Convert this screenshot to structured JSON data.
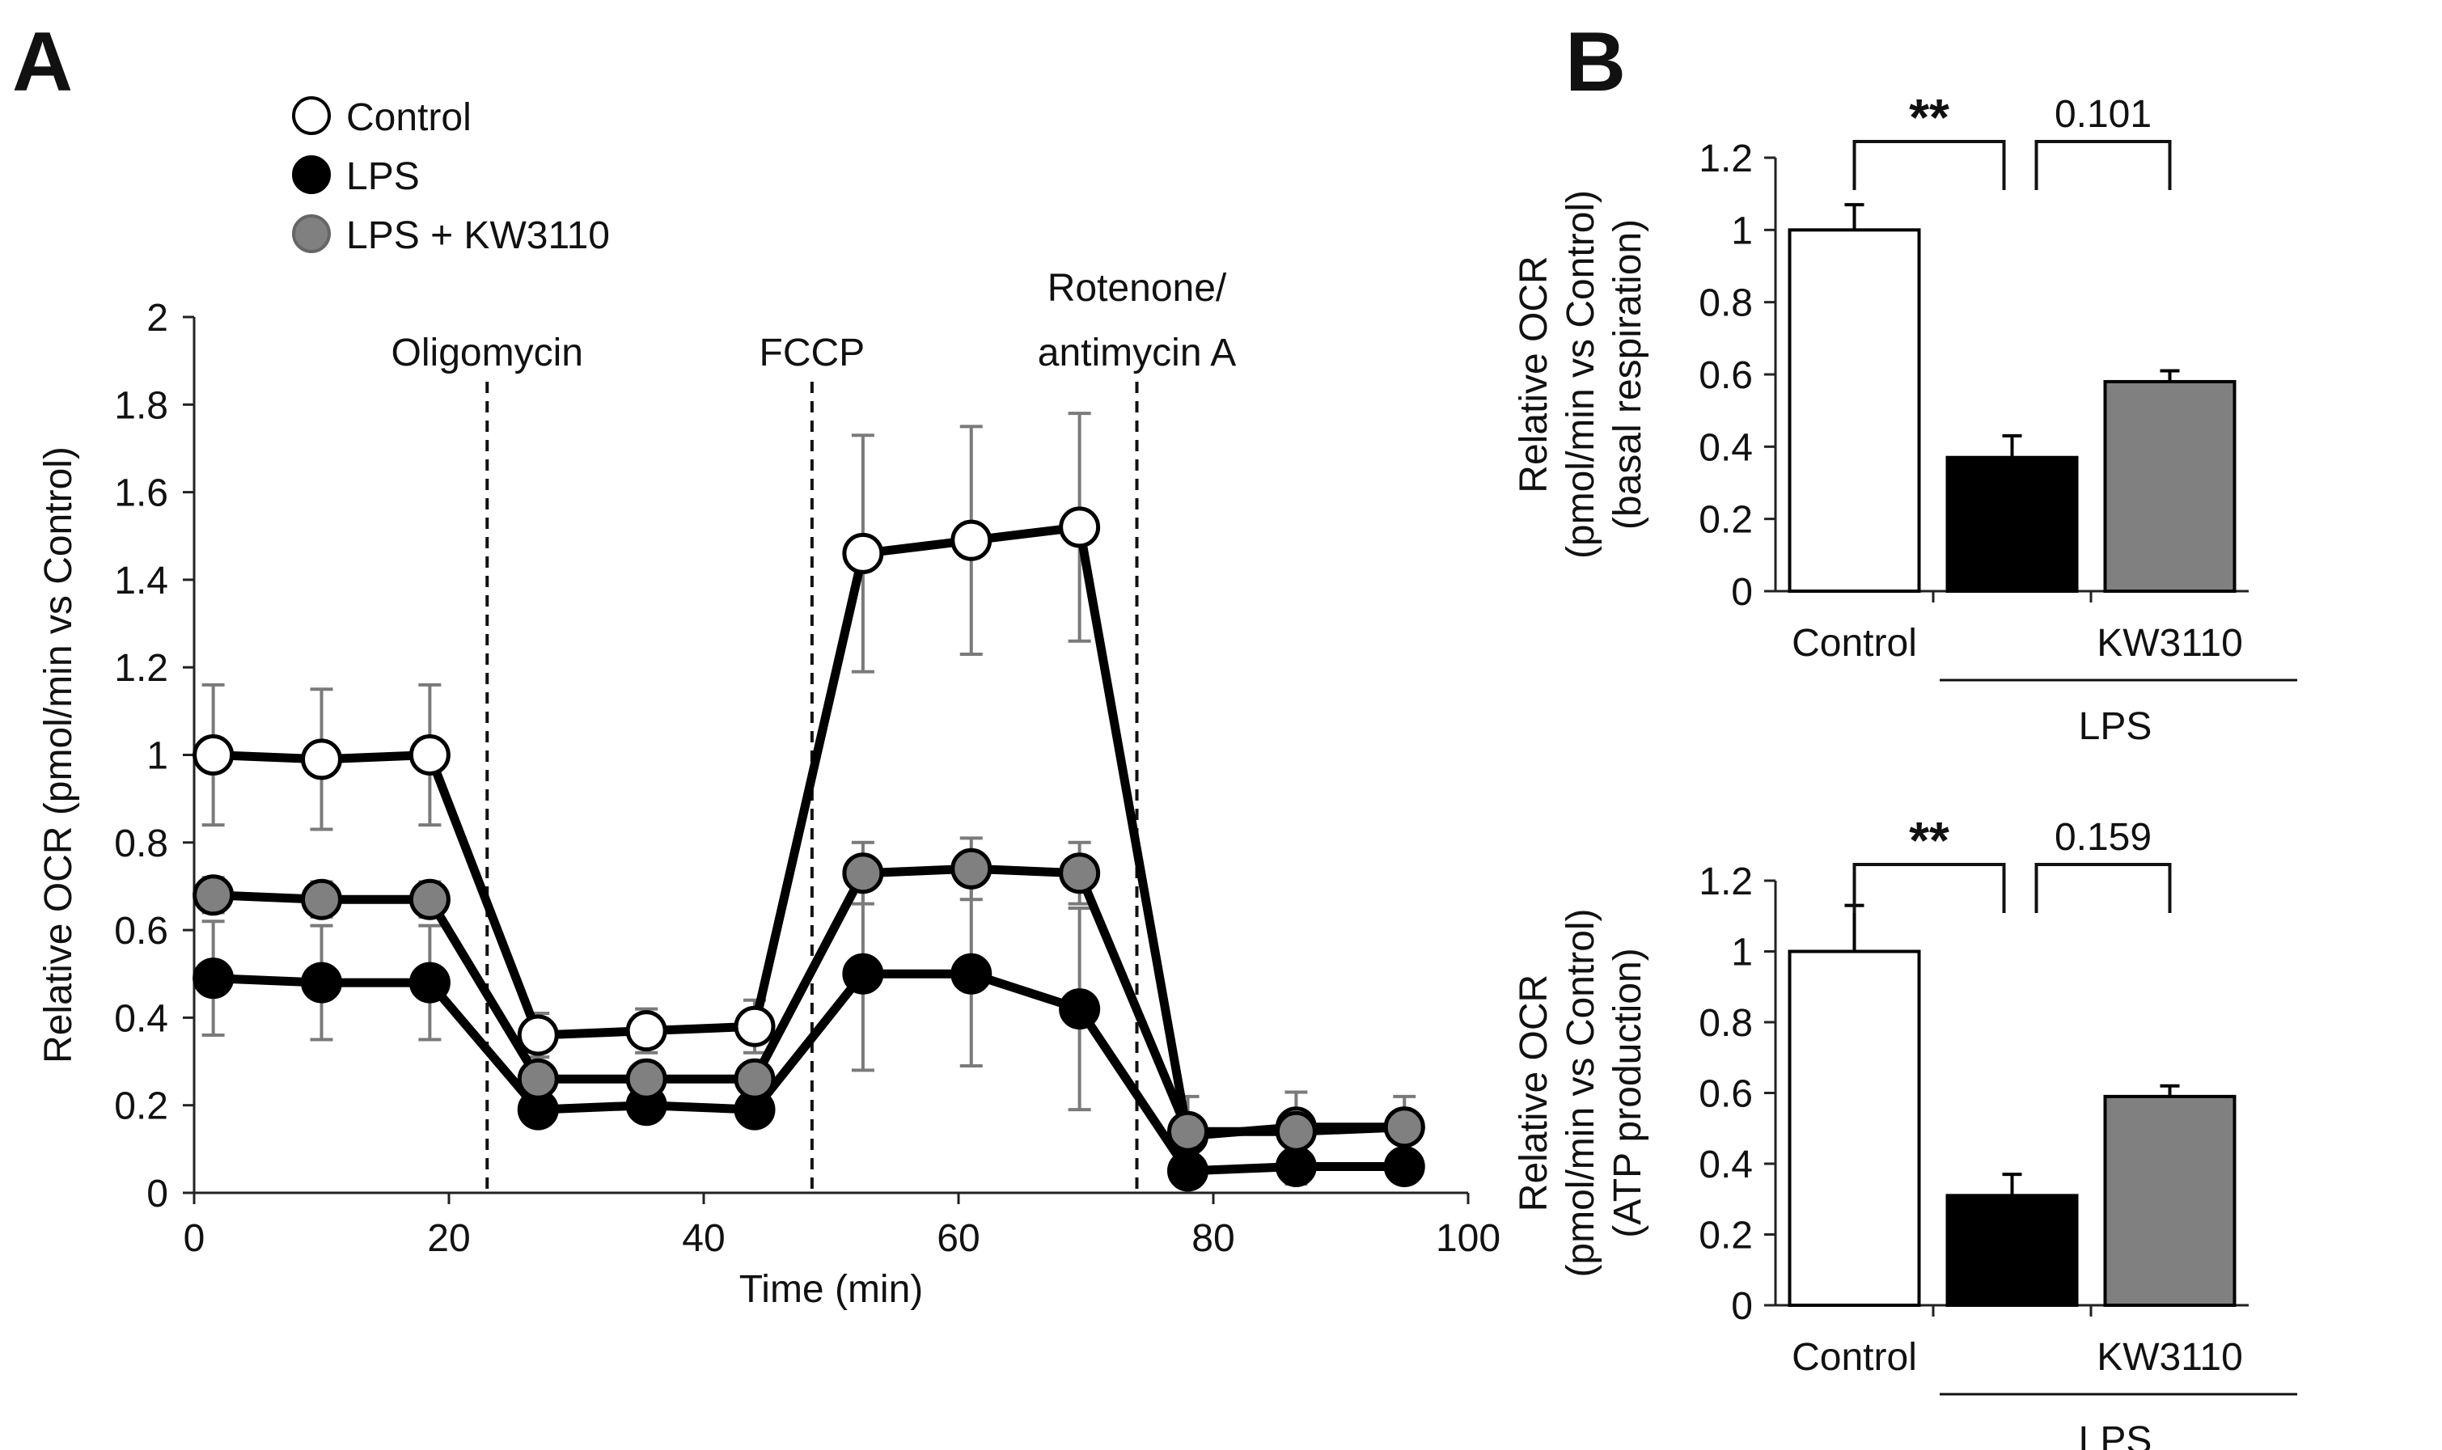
{
  "colors": {
    "control": "#ffffff",
    "lps": "#000000",
    "kw3110": "#808080",
    "error_bar": "#7a7a7a"
  },
  "panel_labels": {
    "a": "A",
    "b": "B"
  },
  "chart_data": [
    {
      "type": "line",
      "panel": "A",
      "title": "",
      "xlabel": "Time (min)",
      "ylabel": "Relative OCR (pmol/min vs Control)",
      "xlim": [
        0,
        100
      ],
      "ylim": [
        0,
        2
      ],
      "xticks": [
        0,
        20,
        40,
        60,
        80,
        100
      ],
      "yticks": [
        0,
        0.2,
        0.4,
        0.6,
        0.8,
        1,
        1.2,
        1.4,
        1.6,
        1.8,
        2
      ],
      "x": [
        1.5,
        10,
        18.5,
        27,
        35.5,
        44,
        52.5,
        61,
        69.5,
        78,
        86.5,
        95
      ],
      "injections": [
        {
          "time": 23,
          "label_lines": [
            "Oligomycin"
          ]
        },
        {
          "time": 48.5,
          "label_lines": [
            "FCCP"
          ]
        },
        {
          "time": 74,
          "label_lines": [
            "Rotenone/",
            "antimycin A"
          ]
        }
      ],
      "series": [
        {
          "name": "Control",
          "key": "control",
          "values": [
            1.0,
            0.99,
            1.0,
            0.36,
            0.37,
            0.38,
            1.46,
            1.49,
            1.52,
            0.13,
            0.15,
            0.15
          ],
          "errors": [
            0.16,
            0.16,
            0.16,
            0.05,
            0.05,
            0.06,
            0.27,
            0.26,
            0.26,
            0.09,
            0.08,
            0.07
          ]
        },
        {
          "name": "LPS",
          "key": "lps",
          "values": [
            0.49,
            0.48,
            0.48,
            0.19,
            0.2,
            0.19,
            0.5,
            0.5,
            0.42,
            0.05,
            0.06,
            0.06
          ],
          "errors": [
            0.13,
            0.13,
            0.13,
            0.02,
            0.02,
            0.02,
            0.22,
            0.21,
            0.23,
            0.03,
            0.04,
            0.03
          ]
        },
        {
          "name": "LPS + KW3110",
          "key": "kw3110",
          "values": [
            0.68,
            0.67,
            0.67,
            0.26,
            0.26,
            0.26,
            0.73,
            0.74,
            0.73,
            0.14,
            0.14,
            0.15
          ],
          "errors": [
            0.04,
            0.04,
            0.04,
            0.03,
            0.03,
            0.03,
            0.07,
            0.07,
            0.07,
            0.03,
            0.03,
            0.03
          ]
        }
      ],
      "legend": [
        "Control",
        "LPS",
        "LPS + KW3110"
      ],
      "legend_position": "top-left"
    },
    {
      "type": "bar",
      "panel": "B-top",
      "ylabel_lines": [
        "Relative OCR",
        "(pmol/min vs Control)",
        "(basal respiration)"
      ],
      "ylim": [
        0,
        1.2
      ],
      "yticks": [
        0,
        0.2,
        0.4,
        0.6,
        0.8,
        1,
        1.2
      ],
      "categories": [
        "Control",
        "",
        "KW3110"
      ],
      "group_label": "LPS",
      "values": [
        1.0,
        0.37,
        0.58
      ],
      "errors": [
        0.07,
        0.06,
        0.03
      ],
      "fill_keys": [
        "control",
        "lps",
        "kw3110"
      ],
      "significance": [
        {
          "from": 0,
          "to": 1,
          "label": "**"
        },
        {
          "from": 1,
          "to": 2,
          "label": "0.101"
        }
      ]
    },
    {
      "type": "bar",
      "panel": "B-bottom",
      "ylabel_lines": [
        "Relative OCR",
        "(pmol/min vs Control)",
        "(ATP production)"
      ],
      "ylim": [
        0,
        1.2
      ],
      "yticks": [
        0,
        0.2,
        0.4,
        0.6,
        0.8,
        1,
        1.2
      ],
      "categories": [
        "Control",
        "",
        "KW3110"
      ],
      "group_label": "LPS",
      "values": [
        1.0,
        0.31,
        0.59
      ],
      "errors": [
        0.13,
        0.06,
        0.03
      ],
      "fill_keys": [
        "control",
        "lps",
        "kw3110"
      ],
      "significance": [
        {
          "from": 0,
          "to": 1,
          "label": "**"
        },
        {
          "from": 1,
          "to": 2,
          "label": "0.159"
        }
      ]
    }
  ]
}
